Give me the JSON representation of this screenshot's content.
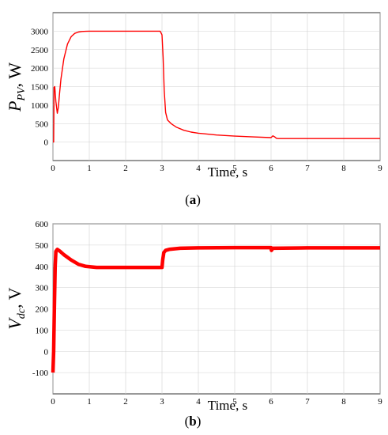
{
  "chart_data": [
    {
      "type": "line",
      "panel": "a",
      "caption_pre": "(",
      "caption_letter": "a",
      "caption_post": ")",
      "ylabel_main": "P",
      "ylabel_sub": "PV",
      "ylabel_rest": ", W",
      "xlabel": "Time, s",
      "xlim": [
        0,
        9
      ],
      "ylim": [
        -500,
        3500
      ],
      "xticks": [
        0,
        1,
        2,
        3,
        4,
        5,
        6,
        7,
        8,
        9
      ],
      "yticks": [
        0,
        500,
        1000,
        1500,
        2000,
        2500,
        3000
      ],
      "grid": true,
      "series": [
        {
          "color": "#ff0000",
          "x": [
            0,
            0.02,
            0.03,
            0.05,
            0.08,
            0.12,
            0.15,
            0.18,
            0.22,
            0.3,
            0.4,
            0.5,
            0.6,
            0.7,
            0.8,
            0.9,
            1.0,
            1.5,
            2.0,
            2.5,
            2.95,
            3.0,
            3.03,
            3.06,
            3.1,
            3.15,
            3.25,
            3.4,
            3.6,
            3.8,
            4.0,
            4.5,
            5.0,
            5.5,
            6.0,
            6.05,
            6.1,
            6.15,
            6.2,
            7.0,
            8.0,
            9.0
          ],
          "y": [
            0,
            0,
            1480,
            1500,
            1100,
            780,
            950,
            1300,
            1700,
            2250,
            2650,
            2850,
            2940,
            2975,
            2990,
            2995,
            3000,
            3000,
            3000,
            3000,
            3000,
            2900,
            2300,
            1400,
            800,
            600,
            500,
            400,
            320,
            270,
            240,
            190,
            160,
            140,
            120,
            170,
            140,
            100,
            95,
            95,
            95,
            95
          ]
        }
      ]
    },
    {
      "type": "line",
      "panel": "b",
      "caption_pre": "(",
      "caption_letter": "b",
      "caption_post": ")",
      "ylabel_main": "V",
      "ylabel_sub": "dc",
      "ylabel_rest": ", V",
      "xlabel": "Time, s",
      "xlim": [
        0,
        9
      ],
      "ylim": [
        -200,
        600
      ],
      "xticks": [
        0,
        1,
        2,
        3,
        4,
        5,
        6,
        7,
        8,
        9
      ],
      "yticks": [
        -100,
        0,
        100,
        200,
        300,
        400,
        500,
        600
      ],
      "grid": true,
      "series": [
        {
          "color": "#ff0000",
          "x": [
            0,
            0.02,
            0.04,
            0.06,
            0.08,
            0.12,
            0.2,
            0.3,
            0.5,
            0.7,
            0.9,
            1.2,
            1.5,
            2.0,
            2.5,
            3.0,
            3.02,
            3.05,
            3.1,
            3.2,
            3.5,
            4.0,
            5.0,
            6.0,
            6.01,
            6.05,
            7.0,
            8.0,
            9.0
          ],
          "y": [
            -100,
            0,
            200,
            400,
            470,
            480,
            470,
            455,
            430,
            410,
            400,
            395,
            395,
            395,
            395,
            395,
            430,
            465,
            475,
            480,
            485,
            487,
            488,
            488,
            475,
            485,
            487,
            487,
            487
          ]
        }
      ]
    }
  ]
}
